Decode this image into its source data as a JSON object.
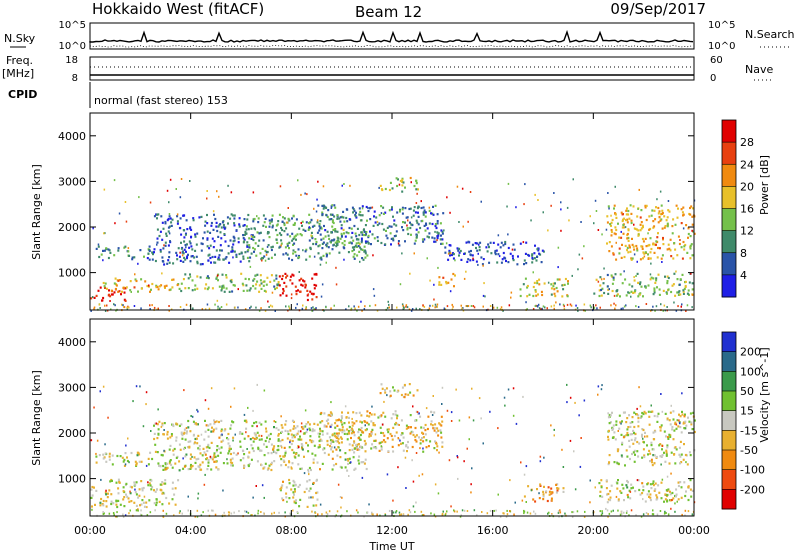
{
  "header": {
    "station": "Hokkaido West (fitACF)",
    "beam": "Beam 12",
    "date": "09/Sep/2017"
  },
  "noise_panel": {
    "left_label": "N.Sky",
    "right_label": "N.Search",
    "tick_top": "10^5",
    "tick_bottom": "10^0",
    "right_tick_top": "10^5",
    "right_tick_bottom": "10^0"
  },
  "freq_panel": {
    "left_label_1": "Freq.",
    "left_label_2": "[MHz]",
    "left_tick_top": "18",
    "left_tick_bottom": "8",
    "right_label": "Nave",
    "right_tick_top": "60",
    "right_tick_bottom": "0"
  },
  "cpid_panel": {
    "label": "CPID",
    "text": "normal (fast stereo) 153"
  },
  "axes": {
    "ylabel": "Slant Range [km]",
    "xlabel": "Time UT",
    "yticks": [
      "1000",
      "2000",
      "3000",
      "4000"
    ],
    "xticks": [
      "00:00",
      "04:00",
      "08:00",
      "12:00",
      "16:00",
      "20:00",
      "00:00"
    ]
  },
  "chart_data": [
    {
      "type": "heatmap",
      "name_key": "power",
      "colorbar_label": "Power [dB]",
      "colorbar_ticks": [
        "4",
        "8",
        "12",
        "16",
        "20",
        "24",
        "28"
      ],
      "colorbar_colors": [
        "#1f1fe6",
        "#2a54a8",
        "#3f8a6a",
        "#74c04a",
        "#e8c02a",
        "#f08a10",
        "#e84010",
        "#e00000"
      ],
      "value_range": [
        0,
        30
      ],
      "x_range_hours": [
        0,
        24
      ],
      "y_range_km": [
        180,
        4500
      ],
      "echo_regions": [
        {
          "t0": 0.0,
          "t1": 1.5,
          "r0": 400,
          "r1": 700,
          "level": 28
        },
        {
          "t0": 0.5,
          "t1": 3.5,
          "r0": 600,
          "r1": 900,
          "level": 18
        },
        {
          "t0": 0.2,
          "t1": 2.5,
          "r0": 1300,
          "r1": 1600,
          "level": 8
        },
        {
          "t0": 2.5,
          "t1": 6.5,
          "r0": 1200,
          "r1": 2300,
          "level": 6
        },
        {
          "t0": 3.5,
          "t1": 7.5,
          "r0": 600,
          "r1": 1000,
          "level": 12
        },
        {
          "t0": 7.5,
          "t1": 9.0,
          "r0": 400,
          "r1": 1000,
          "level": 28
        },
        {
          "t0": 6.0,
          "t1": 11.0,
          "r0": 1300,
          "r1": 2300,
          "level": 10
        },
        {
          "t0": 9.0,
          "t1": 14.0,
          "r0": 1600,
          "r1": 2500,
          "level": 8
        },
        {
          "t0": 11.5,
          "t1": 13.0,
          "r0": 2800,
          "r1": 3100,
          "level": 14
        },
        {
          "t0": 13.8,
          "t1": 14.5,
          "r0": 700,
          "r1": 1000,
          "level": 20
        },
        {
          "t0": 14.0,
          "t1": 18.0,
          "r0": 1200,
          "r1": 1700,
          "level": 6
        },
        {
          "t0": 17.0,
          "t1": 19.0,
          "r0": 500,
          "r1": 900,
          "level": 16
        },
        {
          "t0": 20.5,
          "t1": 24.0,
          "r0": 1300,
          "r1": 2500,
          "level": 18
        },
        {
          "t0": 20.0,
          "t1": 24.0,
          "r0": 500,
          "r1": 1000,
          "level": 12
        }
      ]
    },
    {
      "type": "heatmap",
      "name_key": "velocity",
      "colorbar_label": "Velocity [m s^-1]",
      "colorbar_ticks": [
        "200",
        "100",
        "50",
        "15",
        "-15",
        "-50",
        "-100",
        "-200"
      ],
      "colorbar_colors": [
        "#2030d0",
        "#2a6a8a",
        "#3a9a4a",
        "#70c030",
        "#c8c8c0",
        "#e8b030",
        "#f08a10",
        "#ee4a10",
        "#e00000"
      ],
      "value_range": [
        -250,
        250
      ],
      "x_range_hours": [
        0,
        24
      ],
      "y_range_km": [
        180,
        4500
      ],
      "echo_regions": [
        {
          "t0": 0.0,
          "t1": 3.5,
          "r0": 400,
          "r1": 1000,
          "level": 0
        },
        {
          "t0": 0.2,
          "t1": 2.5,
          "r0": 1300,
          "r1": 1600,
          "level": 0
        },
        {
          "t0": 2.5,
          "t1": 11.0,
          "r0": 1200,
          "r1": 2300,
          "level": 0
        },
        {
          "t0": 7.5,
          "t1": 9.0,
          "r0": 400,
          "r1": 1000,
          "level": 0
        },
        {
          "t0": 9.0,
          "t1": 14.0,
          "r0": 1600,
          "r1": 2500,
          "level": -30
        },
        {
          "t0": 11.5,
          "t1": 13.0,
          "r0": 2800,
          "r1": 3100,
          "level": -10
        },
        {
          "t0": 17.2,
          "t1": 18.8,
          "r0": 500,
          "r1": 900,
          "level": -80
        },
        {
          "t0": 20.5,
          "t1": 24.0,
          "r0": 1300,
          "r1": 2500,
          "level": 0
        },
        {
          "t0": 20.0,
          "t1": 24.0,
          "r0": 500,
          "r1": 1000,
          "level": 0
        }
      ]
    }
  ]
}
